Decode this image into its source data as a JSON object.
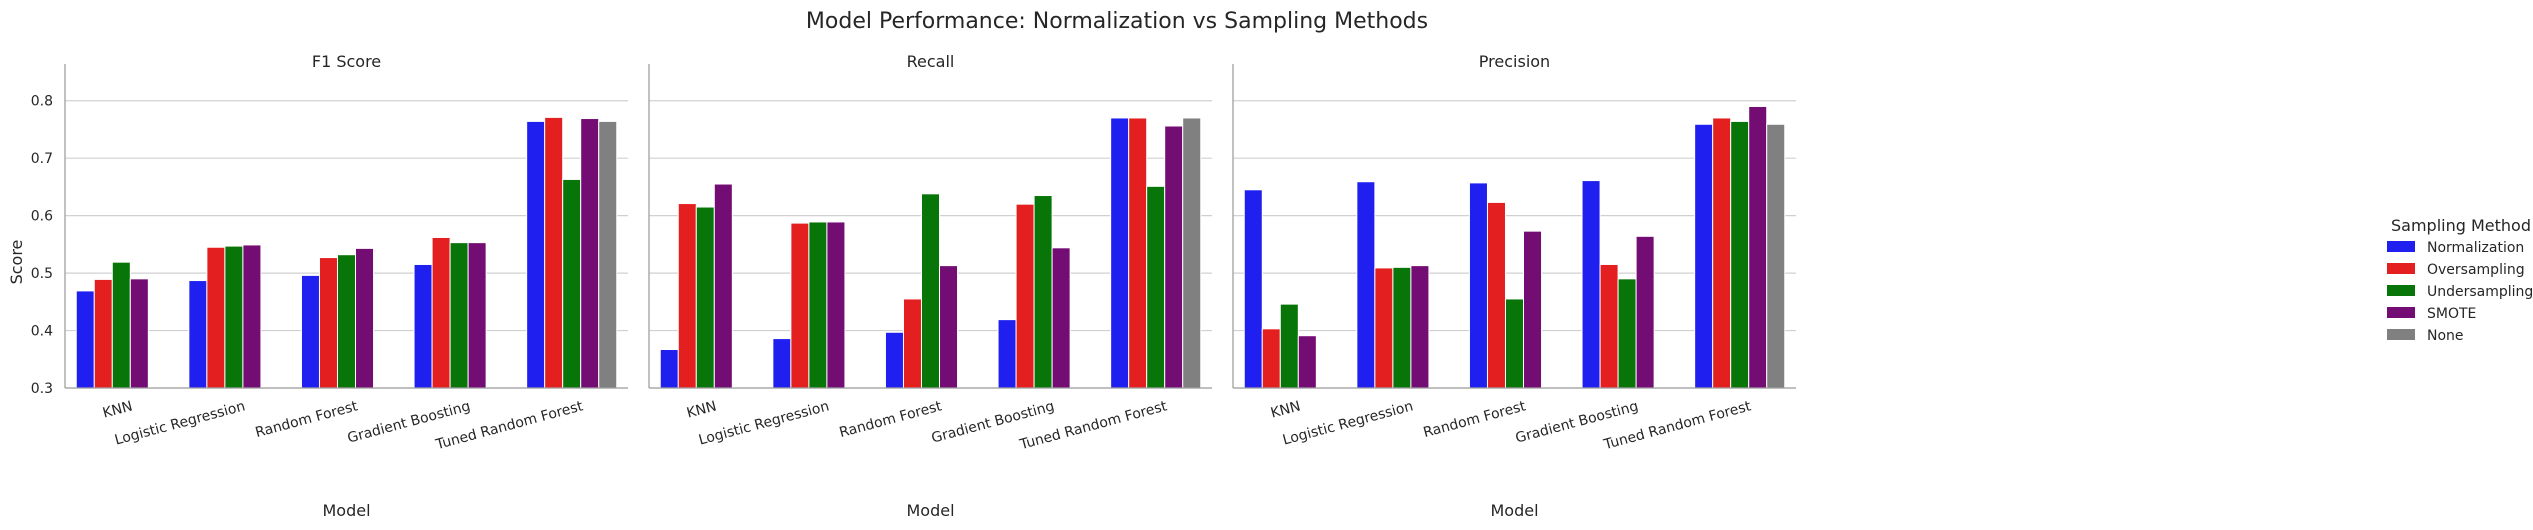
{
  "chart_data": {
    "type": "bar",
    "title": "Model Performance: Normalization vs Sampling Methods",
    "ylabel": "Score",
    "xlabel": "Model",
    "ylim": [
      0.3,
      0.85
    ],
    "yticks": [
      0.3,
      0.4,
      0.5,
      0.6,
      0.7,
      0.8
    ],
    "grid": true,
    "legend": {
      "title": "Sampling Method",
      "placement": "center-right",
      "entries": [
        "Normalization",
        "Oversampling",
        "Undersampling",
        "SMOTE",
        "None"
      ]
    },
    "colors": {
      "Normalization": "#1f1ff0",
      "Oversampling": "#e41f1f",
      "Undersampling": "#087508",
      "SMOTE": "#730c73",
      "None": "#808080"
    },
    "categories": [
      "KNN",
      "Logistic Regression",
      "Random Forest",
      "Gradient Boosting",
      "Tuned Random Forest"
    ],
    "panels": [
      {
        "title": "F1 Score",
        "series": [
          {
            "name": "Normalization",
            "values": [
              0.469,
              0.487,
              0.496,
              0.515,
              0.764
            ]
          },
          {
            "name": "Oversampling",
            "values": [
              0.489,
              0.545,
              0.527,
              0.562,
              0.771
            ]
          },
          {
            "name": "Undersampling",
            "values": [
              0.519,
              0.547,
              0.532,
              0.553,
              0.663
            ]
          },
          {
            "name": "SMOTE",
            "values": [
              0.49,
              0.549,
              0.543,
              0.553,
              0.769
            ]
          },
          {
            "name": "None",
            "values": [
              null,
              null,
              null,
              null,
              0.764
            ]
          }
        ]
      },
      {
        "title": "Recall",
        "series": [
          {
            "name": "Normalization",
            "values": [
              0.367,
              0.386,
              0.397,
              0.419,
              0.77
            ]
          },
          {
            "name": "Oversampling",
            "values": [
              0.621,
              0.587,
              0.455,
              0.62,
              0.77
            ]
          },
          {
            "name": "Undersampling",
            "values": [
              0.615,
              0.589,
              0.638,
              0.635,
              0.651
            ]
          },
          {
            "name": "SMOTE",
            "values": [
              0.655,
              0.589,
              0.513,
              0.544,
              0.756
            ]
          },
          {
            "name": "None",
            "values": [
              null,
              null,
              null,
              null,
              0.77
            ]
          }
        ]
      },
      {
        "title": "Precision",
        "series": [
          {
            "name": "Normalization",
            "values": [
              0.645,
              0.659,
              0.657,
              0.661,
              0.759
            ]
          },
          {
            "name": "Oversampling",
            "values": [
              0.403,
              0.509,
              0.623,
              0.515,
              0.77
            ]
          },
          {
            "name": "Undersampling",
            "values": [
              0.446,
              0.51,
              0.455,
              0.49,
              0.764
            ]
          },
          {
            "name": "SMOTE",
            "values": [
              0.391,
              0.513,
              0.573,
              0.564,
              0.79
            ]
          },
          {
            "name": "None",
            "values": [
              null,
              null,
              null,
              null,
              0.759
            ]
          }
        ]
      }
    ]
  }
}
